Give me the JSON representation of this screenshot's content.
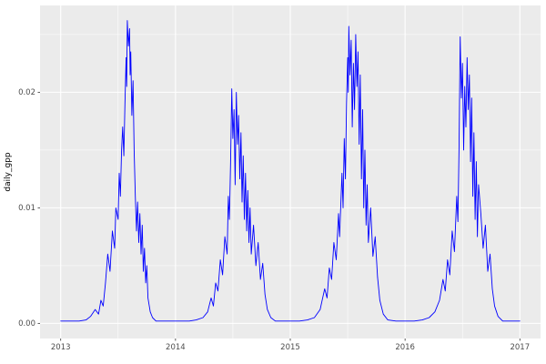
{
  "chart_data": {
    "type": "line",
    "title": "",
    "xlabel": "",
    "ylabel": "daily_gpp",
    "series_name": "daily_gpp",
    "line_color": "#0000FF",
    "panel_bg": "#EBEBEB",
    "grid_color": "#FFFFFF",
    "tick_color": "#333333",
    "tick_text_color": "#4D4D4D",
    "legend": "none",
    "grid": "on",
    "xlim": [
      2013,
      2017
    ],
    "ylim": [
      0,
      0.0262
    ],
    "x_ticks": [
      2013,
      2014,
      2015,
      2016,
      2017
    ],
    "x_tick_labels": [
      "2013",
      "2014",
      "2015",
      "2016",
      "2017"
    ],
    "y_ticks": [
      0.0,
      0.01,
      0.02
    ],
    "y_tick_labels": [
      "0.00",
      "0.01",
      "0.02"
    ],
    "points": [
      [
        2013.0,
        0.0002
      ],
      [
        2013.08,
        0.0002
      ],
      [
        2013.16,
        0.0002
      ],
      [
        2013.22,
        0.0003
      ],
      [
        2013.26,
        0.0006
      ],
      [
        2013.3,
        0.0012
      ],
      [
        2013.33,
        0.0008
      ],
      [
        2013.35,
        0.002
      ],
      [
        2013.37,
        0.0015
      ],
      [
        2013.39,
        0.0035
      ],
      [
        2013.41,
        0.006
      ],
      [
        2013.43,
        0.0045
      ],
      [
        2013.45,
        0.008
      ],
      [
        2013.47,
        0.0065
      ],
      [
        2013.48,
        0.01
      ],
      [
        2013.5,
        0.009
      ],
      [
        2013.51,
        0.013
      ],
      [
        2013.52,
        0.011
      ],
      [
        2013.53,
        0.015
      ],
      [
        2013.54,
        0.017
      ],
      [
        2013.55,
        0.0145
      ],
      [
        2013.56,
        0.019
      ],
      [
        2013.57,
        0.023
      ],
      [
        2013.575,
        0.0205
      ],
      [
        2013.58,
        0.0262
      ],
      [
        2013.59,
        0.024
      ],
      [
        2013.6,
        0.0255
      ],
      [
        2013.605,
        0.0215
      ],
      [
        2013.61,
        0.0235
      ],
      [
        2013.62,
        0.018
      ],
      [
        2013.63,
        0.021
      ],
      [
        2013.64,
        0.015
      ],
      [
        2013.65,
        0.011
      ],
      [
        2013.66,
        0.008
      ],
      [
        2013.67,
        0.0105
      ],
      [
        2013.68,
        0.007
      ],
      [
        2013.69,
        0.0095
      ],
      [
        2013.7,
        0.006
      ],
      [
        2013.71,
        0.0085
      ],
      [
        2013.72,
        0.0045
      ],
      [
        2013.73,
        0.0065
      ],
      [
        2013.74,
        0.0035
      ],
      [
        2013.75,
        0.005
      ],
      [
        2013.76,
        0.0022
      ],
      [
        2013.78,
        0.001
      ],
      [
        2013.8,
        0.0005
      ],
      [
        2013.83,
        0.0002
      ],
      [
        2013.9,
        0.0002
      ],
      [
        2013.97,
        0.0002
      ],
      [
        2014.05,
        0.0002
      ],
      [
        2014.12,
        0.0002
      ],
      [
        2014.18,
        0.0003
      ],
      [
        2014.24,
        0.0005
      ],
      [
        2014.28,
        0.001
      ],
      [
        2014.31,
        0.0022
      ],
      [
        2014.33,
        0.0015
      ],
      [
        2014.35,
        0.0035
      ],
      [
        2014.37,
        0.0028
      ],
      [
        2014.39,
        0.0055
      ],
      [
        2014.41,
        0.0042
      ],
      [
        2014.43,
        0.0075
      ],
      [
        2014.45,
        0.006
      ],
      [
        2014.46,
        0.011
      ],
      [
        2014.47,
        0.009
      ],
      [
        2014.48,
        0.014
      ],
      [
        2014.49,
        0.0203
      ],
      [
        2014.5,
        0.016
      ],
      [
        2014.51,
        0.0185
      ],
      [
        2014.52,
        0.012
      ],
      [
        2014.53,
        0.02
      ],
      [
        2014.54,
        0.0155
      ],
      [
        2014.55,
        0.018
      ],
      [
        2014.56,
        0.0125
      ],
      [
        2014.57,
        0.0165
      ],
      [
        2014.58,
        0.0105
      ],
      [
        2014.59,
        0.0145
      ],
      [
        2014.6,
        0.009
      ],
      [
        2014.61,
        0.013
      ],
      [
        2014.62,
        0.008
      ],
      [
        2014.63,
        0.0115
      ],
      [
        2014.64,
        0.007
      ],
      [
        2014.65,
        0.01
      ],
      [
        2014.66,
        0.006
      ],
      [
        2014.68,
        0.0085
      ],
      [
        2014.7,
        0.005
      ],
      [
        2014.72,
        0.007
      ],
      [
        2014.74,
        0.0038
      ],
      [
        2014.76,
        0.0052
      ],
      [
        2014.78,
        0.0025
      ],
      [
        2014.8,
        0.0012
      ],
      [
        2014.83,
        0.0005
      ],
      [
        2014.87,
        0.0002
      ],
      [
        2014.94,
        0.0002
      ],
      [
        2015.0,
        0.0002
      ],
      [
        2015.08,
        0.0002
      ],
      [
        2015.15,
        0.0003
      ],
      [
        2015.21,
        0.0005
      ],
      [
        2015.26,
        0.0012
      ],
      [
        2015.3,
        0.003
      ],
      [
        2015.32,
        0.0022
      ],
      [
        2015.34,
        0.0048
      ],
      [
        2015.36,
        0.0038
      ],
      [
        2015.38,
        0.007
      ],
      [
        2015.4,
        0.0055
      ],
      [
        2015.42,
        0.0095
      ],
      [
        2015.43,
        0.0075
      ],
      [
        2015.45,
        0.013
      ],
      [
        2015.46,
        0.01
      ],
      [
        2015.47,
        0.016
      ],
      [
        2015.48,
        0.0125
      ],
      [
        2015.49,
        0.019
      ],
      [
        2015.5,
        0.023
      ],
      [
        2015.505,
        0.02
      ],
      [
        2015.51,
        0.0257
      ],
      [
        2015.52,
        0.0215
      ],
      [
        2015.53,
        0.0245
      ],
      [
        2015.54,
        0.017
      ],
      [
        2015.55,
        0.0225
      ],
      [
        2015.56,
        0.0185
      ],
      [
        2015.57,
        0.025
      ],
      [
        2015.58,
        0.0205
      ],
      [
        2015.59,
        0.0235
      ],
      [
        2015.6,
        0.0155
      ],
      [
        2015.61,
        0.0215
      ],
      [
        2015.62,
        0.0125
      ],
      [
        2015.63,
        0.0185
      ],
      [
        2015.64,
        0.01
      ],
      [
        2015.65,
        0.015
      ],
      [
        2015.66,
        0.0085
      ],
      [
        2015.67,
        0.012
      ],
      [
        2015.68,
        0.007
      ],
      [
        2015.7,
        0.01
      ],
      [
        2015.72,
        0.0058
      ],
      [
        2015.74,
        0.0075
      ],
      [
        2015.76,
        0.004
      ],
      [
        2015.78,
        0.002
      ],
      [
        2015.81,
        0.0008
      ],
      [
        2015.85,
        0.0003
      ],
      [
        2015.92,
        0.0002
      ],
      [
        2016.0,
        0.0002
      ],
      [
        2016.08,
        0.0002
      ],
      [
        2016.15,
        0.0003
      ],
      [
        2016.21,
        0.0005
      ],
      [
        2016.26,
        0.001
      ],
      [
        2016.3,
        0.002
      ],
      [
        2016.33,
        0.0038
      ],
      [
        2016.35,
        0.0028
      ],
      [
        2016.37,
        0.0055
      ],
      [
        2016.39,
        0.0042
      ],
      [
        2016.41,
        0.008
      ],
      [
        2016.43,
        0.0062
      ],
      [
        2016.45,
        0.011
      ],
      [
        2016.46,
        0.0088
      ],
      [
        2016.47,
        0.015
      ],
      [
        2016.48,
        0.0248
      ],
      [
        2016.49,
        0.0195
      ],
      [
        2016.5,
        0.0225
      ],
      [
        2016.51,
        0.015
      ],
      [
        2016.52,
        0.0205
      ],
      [
        2016.53,
        0.017
      ],
      [
        2016.54,
        0.023
      ],
      [
        2016.55,
        0.0185
      ],
      [
        2016.56,
        0.0215
      ],
      [
        2016.57,
        0.014
      ],
      [
        2016.58,
        0.0195
      ],
      [
        2016.59,
        0.011
      ],
      [
        2016.6,
        0.0165
      ],
      [
        2016.61,
        0.009
      ],
      [
        2016.62,
        0.014
      ],
      [
        2016.63,
        0.0075
      ],
      [
        2016.64,
        0.012
      ],
      [
        2016.66,
        0.0095
      ],
      [
        2016.68,
        0.0065
      ],
      [
        2016.7,
        0.0085
      ],
      [
        2016.72,
        0.0045
      ],
      [
        2016.74,
        0.006
      ],
      [
        2016.76,
        0.003
      ],
      [
        2016.78,
        0.0015
      ],
      [
        2016.81,
        0.0006
      ],
      [
        2016.85,
        0.0002
      ],
      [
        2016.92,
        0.0002
      ],
      [
        2017.0,
        0.0002
      ]
    ]
  }
}
